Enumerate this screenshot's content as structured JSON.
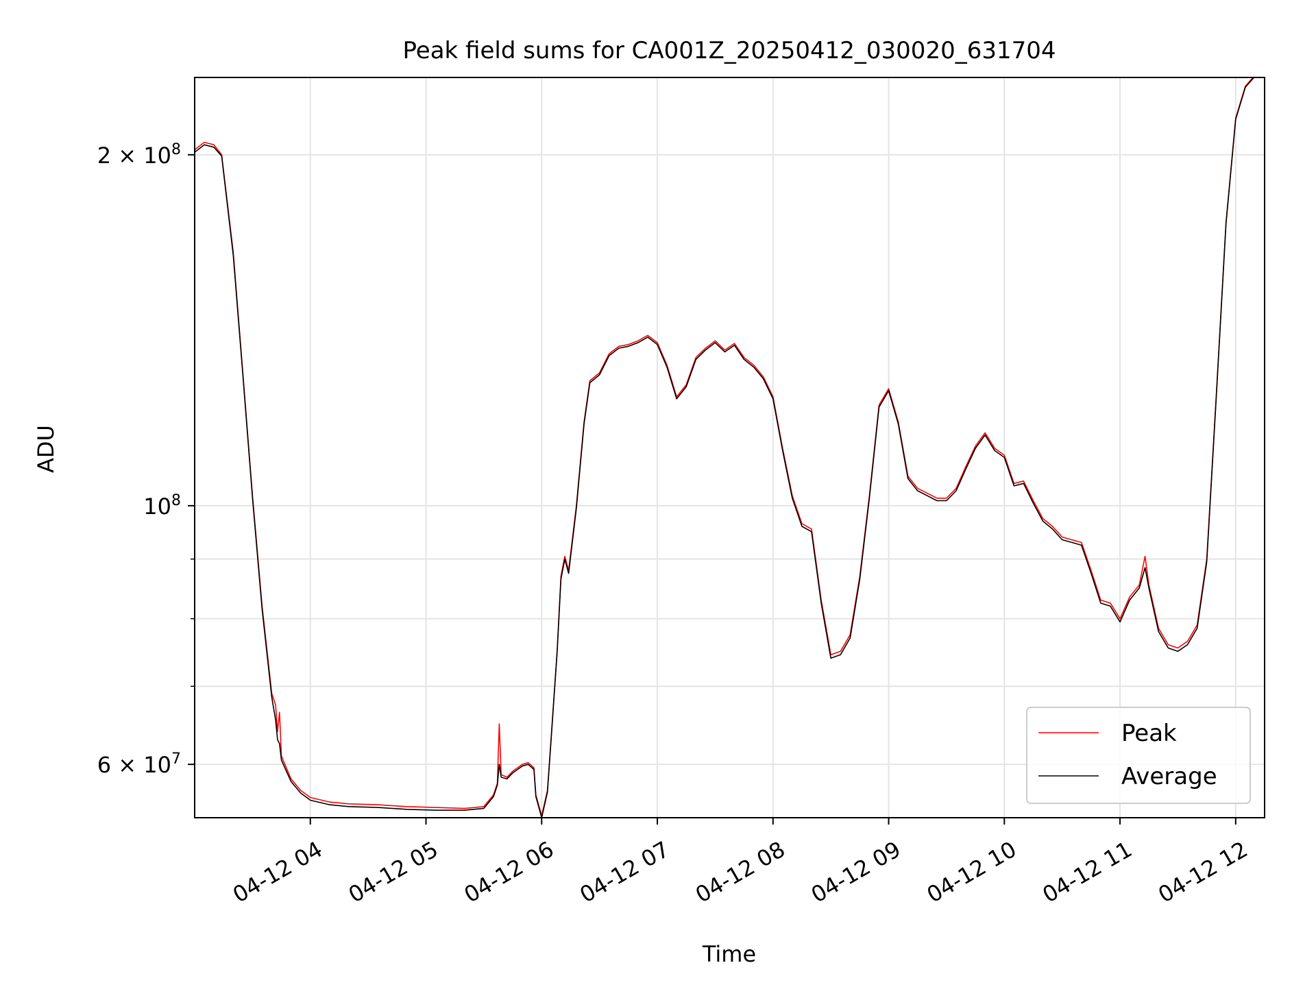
{
  "chart_data": {
    "type": "line",
    "title": "Peak field sums for CA001Z_20250412_030020_631704",
    "xlabel": "Time",
    "ylabel": "ADU",
    "y_scale": "log",
    "ylim": [
      54000000,
      233000000
    ],
    "xlim": [
      "04-12 03:00",
      "04-12 12:15"
    ],
    "grid": true,
    "legend_position": "lower right",
    "x_ticks": [
      {
        "time": "04-12 04:00",
        "label": "04-12 04"
      },
      {
        "time": "04-12 05:00",
        "label": "04-12 05"
      },
      {
        "time": "04-12 06:00",
        "label": "04-12 06"
      },
      {
        "time": "04-12 07:00",
        "label": "04-12 07"
      },
      {
        "time": "04-12 08:00",
        "label": "04-12 08"
      },
      {
        "time": "04-12 09:00",
        "label": "04-12 09"
      },
      {
        "time": "04-12 10:00",
        "label": "04-12 10"
      },
      {
        "time": "04-12 11:00",
        "label": "04-12 11"
      },
      {
        "time": "04-12 12:00",
        "label": "04-12 12"
      }
    ],
    "y_ticks": [
      {
        "value": 200000000,
        "base": "2 × 10",
        "exp": "8"
      },
      {
        "value": 100000000,
        "base": "10",
        "exp": "8"
      },
      {
        "value": 60000000,
        "base": "6 × 10",
        "exp": "7"
      }
    ],
    "y_minor_ticks": [
      70000000,
      80000000,
      90000000
    ],
    "series": [
      {
        "name": "Peak",
        "color": "#ff0000",
        "points": [
          [
            "04-12 03:00",
            202000000
          ],
          [
            "04-12 03:05",
            205000000
          ],
          [
            "04-12 03:10",
            204000000
          ],
          [
            "04-12 03:14",
            200000000
          ],
          [
            "04-12 03:20",
            165000000
          ],
          [
            "04-12 03:25",
            130000000
          ],
          [
            "04-12 03:30",
            102000000
          ],
          [
            "04-12 03:35",
            82000000
          ],
          [
            "04-12 03:40",
            69000000
          ],
          [
            "04-12 03:42",
            67500000
          ],
          [
            "04-12 03:43",
            64000000
          ],
          [
            "04-12 03:44",
            66500000
          ],
          [
            "04-12 03:45",
            61000000
          ],
          [
            "04-12 03:50",
            58300000
          ],
          [
            "04-12 03:55",
            57000000
          ],
          [
            "04-12 04:00",
            56200000
          ],
          [
            "04-12 04:10",
            55700000
          ],
          [
            "04-12 04:20",
            55500000
          ],
          [
            "04-12 04:35",
            55400000
          ],
          [
            "04-12 04:50",
            55200000
          ],
          [
            "04-12 05:05",
            55100000
          ],
          [
            "04-12 05:20",
            55000000
          ],
          [
            "04-12 05:30",
            55200000
          ],
          [
            "04-12 05:35",
            56500000
          ],
          [
            "04-12 05:37",
            57800000
          ],
          [
            "04-12 05:38",
            65000000
          ],
          [
            "04-12 05:39",
            58800000
          ],
          [
            "04-12 05:42",
            58500000
          ],
          [
            "04-12 05:45",
            59200000
          ],
          [
            "04-12 05:50",
            60000000
          ],
          [
            "04-12 05:53",
            60200000
          ],
          [
            "04-12 05:56",
            59600000
          ],
          [
            "04-12 05:57",
            56500000
          ],
          [
            "04-12 06:00",
            54200000
          ],
          [
            "04-12 06:03",
            57000000
          ],
          [
            "04-12 06:05",
            63500000
          ],
          [
            "04-12 06:08",
            75000000
          ],
          [
            "04-12 06:10",
            87000000
          ],
          [
            "04-12 06:12",
            90500000
          ],
          [
            "04-12 06:14",
            88000000
          ],
          [
            "04-12 06:18",
            100000000
          ],
          [
            "04-12 06:22",
            118000000
          ],
          [
            "04-12 06:25",
            128000000
          ],
          [
            "04-12 06:30",
            130000000
          ],
          [
            "04-12 06:35",
            135000000
          ],
          [
            "04-12 06:40",
            137000000
          ],
          [
            "04-12 06:45",
            137500000
          ],
          [
            "04-12 06:50",
            138500000
          ],
          [
            "04-12 06:55",
            140000000
          ],
          [
            "04-12 07:00",
            138000000
          ],
          [
            "04-12 07:05",
            132000000
          ],
          [
            "04-12 07:10",
            124000000
          ],
          [
            "04-12 07:15",
            127000000
          ],
          [
            "04-12 07:20",
            134000000
          ],
          [
            "04-12 07:25",
            136500000
          ],
          [
            "04-12 07:30",
            138500000
          ],
          [
            "04-12 07:35",
            136000000
          ],
          [
            "04-12 07:40",
            137800000
          ],
          [
            "04-12 07:45",
            134000000
          ],
          [
            "04-12 07:50",
            132000000
          ],
          [
            "04-12 07:55",
            129000000
          ],
          [
            "04-12 08:00",
            124000000
          ],
          [
            "04-12 08:05",
            112000000
          ],
          [
            "04-12 08:10",
            102000000
          ],
          [
            "04-12 08:15",
            96500000
          ],
          [
            "04-12 08:20",
            95500000
          ],
          [
            "04-12 08:25",
            83000000
          ],
          [
            "04-12 08:30",
            74500000
          ],
          [
            "04-12 08:35",
            75000000
          ],
          [
            "04-12 08:40",
            77500000
          ],
          [
            "04-12 08:45",
            87000000
          ],
          [
            "04-12 08:50",
            102000000
          ],
          [
            "04-12 08:55",
            122000000
          ],
          [
            "04-12 09:00",
            126000000
          ],
          [
            "04-12 09:05",
            118000000
          ],
          [
            "04-12 09:10",
            106000000
          ],
          [
            "04-12 09:15",
            103500000
          ],
          [
            "04-12 09:20",
            102500000
          ],
          [
            "04-12 09:25",
            101500000
          ],
          [
            "04-12 09:30",
            101500000
          ],
          [
            "04-12 09:35",
            103500000
          ],
          [
            "04-12 09:40",
            108000000
          ],
          [
            "04-12 09:45",
            112500000
          ],
          [
            "04-12 09:50",
            115500000
          ],
          [
            "04-12 09:55",
            112000000
          ],
          [
            "04-12 10:00",
            110500000
          ],
          [
            "04-12 10:05",
            104500000
          ],
          [
            "04-12 10:10",
            105000000
          ],
          [
            "04-12 10:15",
            101000000
          ],
          [
            "04-12 10:20",
            97500000
          ],
          [
            "04-12 10:25",
            96000000
          ],
          [
            "04-12 10:30",
            94000000
          ],
          [
            "04-12 10:35",
            93500000
          ],
          [
            "04-12 10:40",
            93000000
          ],
          [
            "04-12 10:45",
            88000000
          ],
          [
            "04-12 10:50",
            83000000
          ],
          [
            "04-12 10:55",
            82500000
          ],
          [
            "04-12 11:00",
            80000000
          ],
          [
            "04-12 11:05",
            83500000
          ],
          [
            "04-12 11:10",
            85500000
          ],
          [
            "04-12 11:13",
            90500000
          ],
          [
            "04-12 11:15",
            85500000
          ],
          [
            "04-12 11:20",
            78500000
          ],
          [
            "04-12 11:25",
            76000000
          ],
          [
            "04-12 11:30",
            75500000
          ],
          [
            "04-12 11:35",
            76500000
          ],
          [
            "04-12 11:40",
            79000000
          ],
          [
            "04-12 11:45",
            90000000
          ],
          [
            "04-12 11:50",
            125000000
          ],
          [
            "04-12 11:55",
            175000000
          ],
          [
            "04-12 12:00",
            215000000
          ],
          [
            "04-12 12:05",
            229000000
          ],
          [
            "04-12 12:10",
            234000000
          ]
        ]
      },
      {
        "name": "Average",
        "color": "#000000",
        "points": [
          [
            "04-12 03:00",
            201000000
          ],
          [
            "04-12 03:05",
            204000000
          ],
          [
            "04-12 03:10",
            203000000
          ],
          [
            "04-12 03:14",
            199500000
          ],
          [
            "04-12 03:20",
            164000000
          ],
          [
            "04-12 03:25",
            129500000
          ],
          [
            "04-12 03:30",
            101500000
          ],
          [
            "04-12 03:35",
            81500000
          ],
          [
            "04-12 03:40",
            68500000
          ],
          [
            "04-12 03:42",
            65500000
          ],
          [
            "04-12 03:43",
            63000000
          ],
          [
            "04-12 03:44",
            62500000
          ],
          [
            "04-12 03:45",
            60500000
          ],
          [
            "04-12 03:50",
            58000000
          ],
          [
            "04-12 03:55",
            56700000
          ],
          [
            "04-12 04:00",
            55900000
          ],
          [
            "04-12 04:10",
            55400000
          ],
          [
            "04-12 04:20",
            55200000
          ],
          [
            "04-12 04:35",
            55100000
          ],
          [
            "04-12 04:50",
            54900000
          ],
          [
            "04-12 05:05",
            54800000
          ],
          [
            "04-12 05:20",
            54800000
          ],
          [
            "04-12 05:30",
            55000000
          ],
          [
            "04-12 05:35",
            56300000
          ],
          [
            "04-12 05:37",
            57600000
          ],
          [
            "04-12 05:38",
            60000000
          ],
          [
            "04-12 05:39",
            58500000
          ],
          [
            "04-12 05:42",
            58300000
          ],
          [
            "04-12 05:45",
            59000000
          ],
          [
            "04-12 05:50",
            59800000
          ],
          [
            "04-12 05:53",
            60000000
          ],
          [
            "04-12 05:56",
            59400000
          ],
          [
            "04-12 05:57",
            56300000
          ],
          [
            "04-12 06:00",
            54000000
          ],
          [
            "04-12 06:03",
            56800000
          ],
          [
            "04-12 06:05",
            63300000
          ],
          [
            "04-12 06:08",
            74800000
          ],
          [
            "04-12 06:10",
            86500000
          ],
          [
            "04-12 06:12",
            90000000
          ],
          [
            "04-12 06:14",
            87500000
          ],
          [
            "04-12 06:18",
            99500000
          ],
          [
            "04-12 06:22",
            117500000
          ],
          [
            "04-12 06:25",
            127500000
          ],
          [
            "04-12 06:30",
            129500000
          ],
          [
            "04-12 06:35",
            134500000
          ],
          [
            "04-12 06:40",
            136500000
          ],
          [
            "04-12 06:45",
            137000000
          ],
          [
            "04-12 06:50",
            138000000
          ],
          [
            "04-12 06:55",
            139500000
          ],
          [
            "04-12 07:00",
            137500000
          ],
          [
            "04-12 07:05",
            131500000
          ],
          [
            "04-12 07:10",
            123500000
          ],
          [
            "04-12 07:15",
            126500000
          ],
          [
            "04-12 07:20",
            133500000
          ],
          [
            "04-12 07:25",
            136000000
          ],
          [
            "04-12 07:30",
            138000000
          ],
          [
            "04-12 07:35",
            135500000
          ],
          [
            "04-12 07:40",
            137300000
          ],
          [
            "04-12 07:45",
            133500000
          ],
          [
            "04-12 07:50",
            131500000
          ],
          [
            "04-12 07:55",
            128500000
          ],
          [
            "04-12 08:00",
            123500000
          ],
          [
            "04-12 08:05",
            111500000
          ],
          [
            "04-12 08:10",
            101500000
          ],
          [
            "04-12 08:15",
            96000000
          ],
          [
            "04-12 08:20",
            95000000
          ],
          [
            "04-12 08:25",
            82500000
          ],
          [
            "04-12 08:30",
            74000000
          ],
          [
            "04-12 08:35",
            74500000
          ],
          [
            "04-12 08:40",
            77000000
          ],
          [
            "04-12 08:45",
            86500000
          ],
          [
            "04-12 08:50",
            101500000
          ],
          [
            "04-12 08:55",
            121500000
          ],
          [
            "04-12 09:00",
            125500000
          ],
          [
            "04-12 09:05",
            117500000
          ],
          [
            "04-12 09:10",
            105500000
          ],
          [
            "04-12 09:15",
            103000000
          ],
          [
            "04-12 09:20",
            102000000
          ],
          [
            "04-12 09:25",
            101000000
          ],
          [
            "04-12 09:30",
            101000000
          ],
          [
            "04-12 09:35",
            103000000
          ],
          [
            "04-12 09:40",
            107500000
          ],
          [
            "04-12 09:45",
            112000000
          ],
          [
            "04-12 09:50",
            115000000
          ],
          [
            "04-12 09:55",
            111500000
          ],
          [
            "04-12 10:00",
            110000000
          ],
          [
            "04-12 10:05",
            104000000
          ],
          [
            "04-12 10:10",
            104500000
          ],
          [
            "04-12 10:15",
            100500000
          ],
          [
            "04-12 10:20",
            97000000
          ],
          [
            "04-12 10:25",
            95500000
          ],
          [
            "04-12 10:30",
            93500000
          ],
          [
            "04-12 10:35",
            93000000
          ],
          [
            "04-12 10:40",
            92500000
          ],
          [
            "04-12 10:45",
            87500000
          ],
          [
            "04-12 10:50",
            82500000
          ],
          [
            "04-12 10:55",
            82000000
          ],
          [
            "04-12 11:00",
            79500000
          ],
          [
            "04-12 11:05",
            83000000
          ],
          [
            "04-12 11:10",
            85000000
          ],
          [
            "04-12 11:13",
            88500000
          ],
          [
            "04-12 11:15",
            85000000
          ],
          [
            "04-12 11:20",
            78000000
          ],
          [
            "04-12 11:25",
            75500000
          ],
          [
            "04-12 11:30",
            75000000
          ],
          [
            "04-12 11:35",
            76000000
          ],
          [
            "04-12 11:40",
            78500000
          ],
          [
            "04-12 11:45",
            89500000
          ],
          [
            "04-12 11:50",
            124500000
          ],
          [
            "04-12 11:55",
            174500000
          ],
          [
            "04-12 12:00",
            214500000
          ],
          [
            "04-12 12:05",
            228500000
          ],
          [
            "04-12 12:10",
            233500000
          ]
        ]
      }
    ]
  }
}
